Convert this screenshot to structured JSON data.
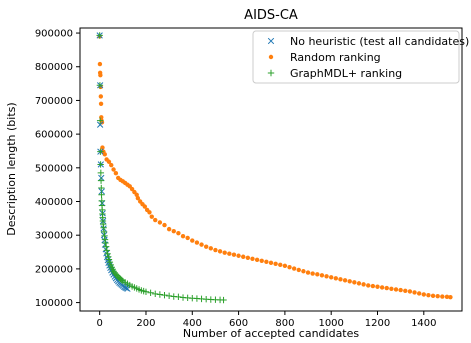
{
  "chart_data": {
    "type": "scatter",
    "title": "AIDS-CA",
    "xlabel": "Number of accepted candidates",
    "ylabel": "Description length (bits)",
    "xlim": [
      -85,
      1565
    ],
    "ylim": [
      75000,
      915000
    ],
    "xticks": [
      0,
      200,
      400,
      600,
      800,
      1000,
      1200,
      1400
    ],
    "yticks": [
      100000,
      200000,
      300000,
      400000,
      500000,
      600000,
      700000,
      800000,
      900000
    ],
    "grid": false,
    "legend_position": "top-right",
    "series": [
      {
        "name": "No heuristic (test all candidates)",
        "marker": "x",
        "color": "#1f77b4",
        "points": [
          [
            0,
            893000
          ],
          [
            2,
            745000
          ],
          [
            2,
            628000
          ],
          [
            3,
            548000
          ],
          [
            5,
            510000
          ],
          [
            7,
            470000
          ],
          [
            9,
            430000
          ],
          [
            11,
            395000
          ],
          [
            13,
            365000
          ],
          [
            15,
            342000
          ],
          [
            17,
            320000
          ],
          [
            19,
            300000
          ],
          [
            21,
            285000
          ],
          [
            23,
            272000
          ],
          [
            26,
            258000
          ],
          [
            29,
            246000
          ],
          [
            32,
            235000
          ],
          [
            35,
            226000
          ],
          [
            38,
            218000
          ],
          [
            42,
            210000
          ],
          [
            46,
            203000
          ],
          [
            50,
            196000
          ],
          [
            55,
            189000
          ],
          [
            60,
            183000
          ],
          [
            65,
            177000
          ],
          [
            70,
            172000
          ],
          [
            75,
            167000
          ],
          [
            80,
            163000
          ],
          [
            85,
            159000
          ],
          [
            90,
            156000
          ],
          [
            95,
            153000
          ],
          [
            100,
            150000
          ],
          [
            105,
            147000
          ],
          [
            110,
            145000
          ],
          [
            115,
            143000
          ],
          [
            120,
            141000
          ]
        ]
      },
      {
        "name": "Random ranking",
        "marker": "o",
        "color": "#ff7f0e",
        "points": [
          [
            0,
            890000
          ],
          [
            1,
            808000
          ],
          [
            2,
            782000
          ],
          [
            3,
            775000
          ],
          [
            4,
            740000
          ],
          [
            5,
            712000
          ],
          [
            6,
            690000
          ],
          [
            7,
            650000
          ],
          [
            8,
            640000
          ],
          [
            10,
            635000
          ],
          [
            12,
            560000
          ],
          [
            16,
            548000
          ],
          [
            22,
            540000
          ],
          [
            30,
            525000
          ],
          [
            40,
            518000
          ],
          [
            50,
            508000
          ],
          [
            60,
            495000
          ],
          [
            70,
            484000
          ],
          [
            80,
            470000
          ],
          [
            90,
            464000
          ],
          [
            100,
            460000
          ],
          [
            110,
            455000
          ],
          [
            120,
            450000
          ],
          [
            130,
            445000
          ],
          [
            140,
            437000
          ],
          [
            150,
            428000
          ],
          [
            160,
            420000
          ],
          [
            165,
            410000
          ],
          [
            175,
            400000
          ],
          [
            185,
            392000
          ],
          [
            195,
            385000
          ],
          [
            205,
            375000
          ],
          [
            215,
            368000
          ],
          [
            225,
            355000
          ],
          [
            240,
            345000
          ],
          [
            260,
            338000
          ],
          [
            280,
            330000
          ],
          [
            300,
            318000
          ],
          [
            320,
            312000
          ],
          [
            340,
            306000
          ],
          [
            360,
            297000
          ],
          [
            380,
            292000
          ],
          [
            400,
            284000
          ],
          [
            420,
            278000
          ],
          [
            440,
            272000
          ],
          [
            460,
            266000
          ],
          [
            480,
            261000
          ],
          [
            500,
            256000
          ],
          [
            520,
            252000
          ],
          [
            540,
            248000
          ],
          [
            560,
            245000
          ],
          [
            580,
            242000
          ],
          [
            600,
            239000
          ],
          [
            620,
            236000
          ],
          [
            640,
            233000
          ],
          [
            660,
            230000
          ],
          [
            680,
            227000
          ],
          [
            700,
            224000
          ],
          [
            720,
            221000
          ],
          [
            740,
            218000
          ],
          [
            760,
            215000
          ],
          [
            780,
            212000
          ],
          [
            800,
            209000
          ],
          [
            820,
            205000
          ],
          [
            840,
            201000
          ],
          [
            860,
            197000
          ],
          [
            880,
            193000
          ],
          [
            900,
            189000
          ],
          [
            920,
            186000
          ],
          [
            940,
            184000
          ],
          [
            960,
            181000
          ],
          [
            980,
            178000
          ],
          [
            1000,
            175000
          ],
          [
            1020,
            172000
          ],
          [
            1040,
            169000
          ],
          [
            1060,
            166000
          ],
          [
            1080,
            163000
          ],
          [
            1100,
            160000
          ],
          [
            1120,
            157000
          ],
          [
            1140,
            154000
          ],
          [
            1160,
            151000
          ],
          [
            1180,
            149000
          ],
          [
            1200,
            147000
          ],
          [
            1220,
            145000
          ],
          [
            1240,
            143000
          ],
          [
            1260,
            141000
          ],
          [
            1280,
            139000
          ],
          [
            1300,
            137000
          ],
          [
            1320,
            135000
          ],
          [
            1340,
            133000
          ],
          [
            1360,
            130000
          ],
          [
            1380,
            127000
          ],
          [
            1400,
            124000
          ],
          [
            1420,
            122000
          ],
          [
            1440,
            120000
          ],
          [
            1460,
            119000
          ],
          [
            1480,
            118000
          ],
          [
            1500,
            117000
          ],
          [
            1515,
            116000
          ]
        ]
      },
      {
        "name": "GraphMDL+ ranking",
        "marker": "+",
        "color": "#2ca02c",
        "points": [
          [
            0,
            893000
          ],
          [
            1,
            745000
          ],
          [
            2,
            640000
          ],
          [
            3,
            548000
          ],
          [
            4,
            510000
          ],
          [
            5,
            485000
          ],
          [
            6,
            462000
          ],
          [
            7,
            440000
          ],
          [
            8,
            420000
          ],
          [
            9,
            402000
          ],
          [
            10,
            388000
          ],
          [
            11,
            375000
          ],
          [
            12,
            363000
          ],
          [
            13,
            352000
          ],
          [
            14,
            342000
          ],
          [
            15,
            333000
          ],
          [
            17,
            322000
          ],
          [
            19,
            310000
          ],
          [
            21,
            298000
          ],
          [
            23,
            287000
          ],
          [
            25,
            277000
          ],
          [
            28,
            266000
          ],
          [
            31,
            255000
          ],
          [
            34,
            245000
          ],
          [
            37,
            236000
          ],
          [
            40,
            228000
          ],
          [
            44,
            220000
          ],
          [
            48,
            212000
          ],
          [
            52,
            205000
          ],
          [
            56,
            199000
          ],
          [
            60,
            193000
          ],
          [
            65,
            188000
          ],
          [
            70,
            184000
          ],
          [
            75,
            180000
          ],
          [
            80,
            176000
          ],
          [
            85,
            173000
          ],
          [
            90,
            170000
          ],
          [
            95,
            167000
          ],
          [
            100,
            164000
          ],
          [
            110,
            160000
          ],
          [
            120,
            156000
          ],
          [
            130,
            152000
          ],
          [
            140,
            148000
          ],
          [
            150,
            145000
          ],
          [
            160,
            142000
          ],
          [
            170,
            139000
          ],
          [
            180,
            136000
          ],
          [
            190,
            134000
          ],
          [
            200,
            132000
          ],
          [
            220,
            129000
          ],
          [
            240,
            126000
          ],
          [
            260,
            124000
          ],
          [
            280,
            122000
          ],
          [
            300,
            120000
          ],
          [
            320,
            118000
          ],
          [
            340,
            117000
          ],
          [
            360,
            115000
          ],
          [
            380,
            114000
          ],
          [
            400,
            113000
          ],
          [
            420,
            112000
          ],
          [
            440,
            111000
          ],
          [
            460,
            110000
          ],
          [
            480,
            109000
          ],
          [
            500,
            108500
          ],
          [
            520,
            108000
          ],
          [
            535,
            107500
          ]
        ]
      }
    ]
  }
}
